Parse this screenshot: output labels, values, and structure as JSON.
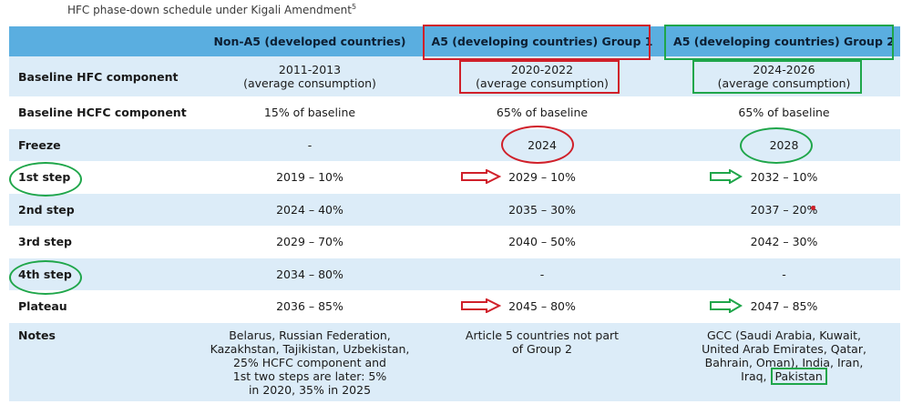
{
  "title": "HFC phase-down schedule under Kigali Amendment",
  "title_footnote": "5",
  "header": {
    "col0": "",
    "col1": "Non-A5 (developed countries)",
    "col2": "A5 (developing countries) Group 1",
    "col3": "A5 (developing countries) Group 2"
  },
  "rows": [
    {
      "label": "Baseline HFC component",
      "c1a": "2011-2013",
      "c1b": "(average consumption)",
      "c2a": "2020-2022",
      "c2b": "(average consumption)",
      "c3a": "2024-2026",
      "c3b": "(average consumption)"
    },
    {
      "label": "Baseline HCFC component",
      "c1": "15% of baseline",
      "c2": "65% of baseline",
      "c3": "65% of baseline"
    },
    {
      "label": "Freeze",
      "c1": "-",
      "c2": "2024",
      "c3": "2028"
    },
    {
      "label": "1st step",
      "c1": "2019 – 10%",
      "c2": "2029 – 10%",
      "c3": "2032 – 10%"
    },
    {
      "label": "2nd step",
      "c1": "2024 – 40%",
      "c2": "2035 – 30%",
      "c3": "2037 – 20%"
    },
    {
      "label": "3rd step",
      "c1": "2029 – 70%",
      "c2": "2040 – 50%",
      "c3": "2042 – 30%"
    },
    {
      "label": "4th step",
      "c1": "2034 – 80%",
      "c2": "-",
      "c3": "-"
    },
    {
      "label": "Plateau",
      "c1": "2036 – 85%",
      "c2": "2045 – 80%",
      "c3": "2047 – 85%"
    }
  ],
  "notes": {
    "label": "Notes",
    "c1": [
      "Belarus, Russian Federation,",
      "Kazakhstan, Tajikistan, Uzbekistan,",
      "25% HCFC component and",
      "1st two steps are later: 5%",
      "in 2020, 35% in 2025"
    ],
    "c2": [
      "Article 5 countries not part",
      "of Group 2"
    ],
    "c3": [
      "GCC (Saudi Arabia, Kuwait,",
      "United Arab Emirates, Qatar,",
      "Bahrain, Oman), India, Iran,",
      "Iraq, "
    ],
    "c3_highlight": "Pakistan"
  },
  "colors": {
    "header_bg": "#5aaee0",
    "row_alt": "#dcecf8",
    "annot_red": "#d0202a",
    "annot_green": "#1fa64a"
  }
}
